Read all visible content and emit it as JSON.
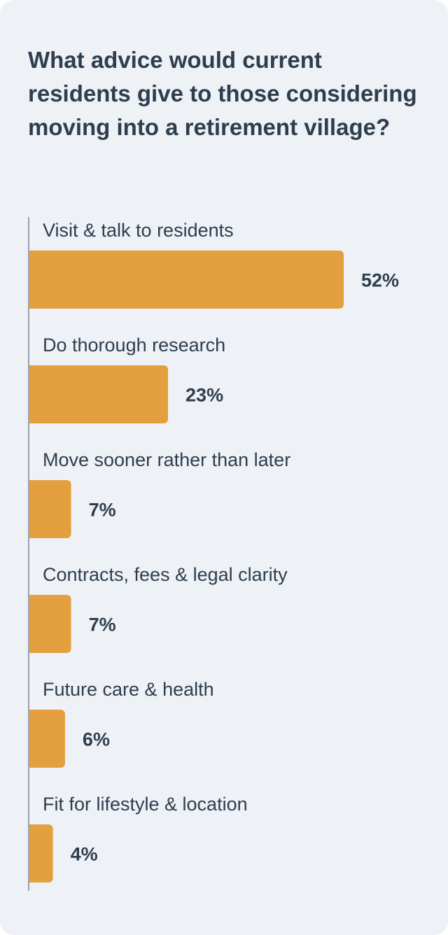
{
  "chart_data": {
    "type": "bar",
    "orientation": "horizontal",
    "title": "What advice would current residents give to those considering moving into a retirement village?",
    "categories": [
      "Visit & talk to residents",
      "Do thorough research",
      "Move sooner rather than later",
      "Contracts, fees & legal clarity",
      "Future care & health",
      "Fit for lifestyle & location"
    ],
    "values": [
      52,
      23,
      7,
      7,
      6,
      4
    ],
    "value_labels": [
      "52%",
      "23%",
      "7%",
      "7%",
      "6%",
      "4%"
    ],
    "unit": "%",
    "grid": false,
    "legend": "none"
  },
  "colors": {
    "bar": "#e4a03e",
    "text": "#2e3e4e",
    "background": "#eef1f6",
    "axis": "#9aa3ad"
  }
}
